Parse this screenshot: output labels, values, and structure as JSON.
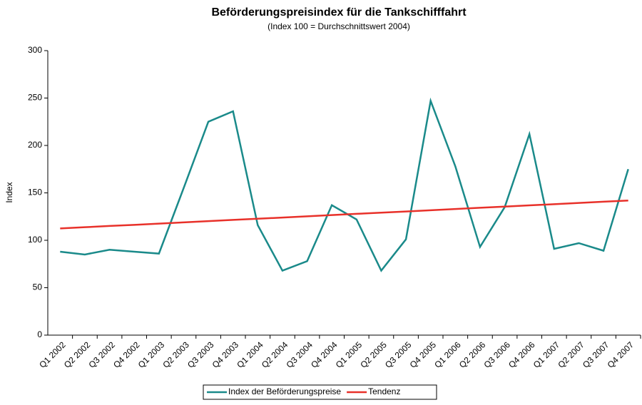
{
  "chart_data": {
    "type": "line",
    "title": "Beförderungspreisindex für die Tankschifffahrt",
    "subtitle": "(Index 100 = Durchschnittswert 2004)",
    "y_label": "Index",
    "categories": [
      "Q1 2002",
      "Q2 2002",
      "Q3 2002",
      "Q4 2002",
      "Q1 2003",
      "Q2 2003",
      "Q3 2003",
      "Q4 2003",
      "Q1 2004",
      "Q2 2004",
      "Q3 2004",
      "Q4 2004",
      "Q1 2005",
      "Q2 2005",
      "Q3 2005",
      "Q4 2005",
      "Q1 2006",
      "Q2 2006",
      "Q3 2006",
      "Q4 2006",
      "Q1 2007",
      "Q2 2007",
      "Q3 2007",
      "Q4 2007"
    ],
    "series": [
      {
        "name": "Index der Beförderungspreise",
        "color": "#1a8a8a",
        "values": [
          88,
          85,
          90,
          88,
          86,
          155,
          225,
          236,
          116,
          68,
          78,
          137,
          122,
          68,
          101,
          247,
          178,
          93,
          135,
          212,
          91,
          97,
          89,
          175
        ]
      },
      {
        "name": "Tendenz",
        "color": "#e8312a",
        "values": [
          112.5,
          113.8,
          115.1,
          116.3,
          117.6,
          118.9,
          120.2,
          121.5,
          122.7,
          124.0,
          125.3,
          126.6,
          127.9,
          129.1,
          130.4,
          131.7,
          133.0,
          134.3,
          135.5,
          136.8,
          138.1,
          139.4,
          140.7,
          141.9
        ]
      }
    ],
    "ylim": [
      0,
      300
    ],
    "yticks": [
      0,
      50,
      100,
      150,
      200,
      250,
      300
    ],
    "grid": false,
    "legend": "bottom"
  }
}
